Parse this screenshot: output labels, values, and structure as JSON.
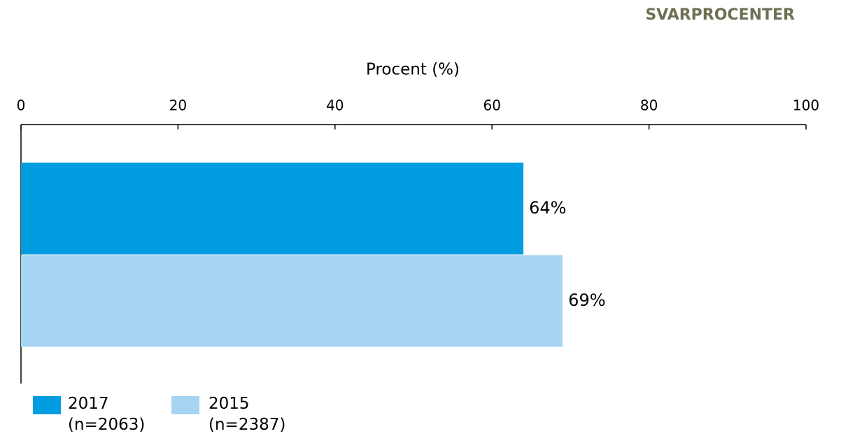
{
  "chart_data": {
    "type": "bar",
    "orientation": "horizontal",
    "title": "SVARPROCENTER",
    "xlabel": "Procent (%)",
    "categories": [
      null
    ],
    "series": [
      {
        "name": "2017 (n=2063)",
        "color": "#009de0",
        "values": [
          64
        ],
        "value_labels": [
          "64%"
        ]
      },
      {
        "name": "2015 (n=2387)",
        "color": "#a8d4f4",
        "values": [
          69
        ],
        "value_labels": [
          "69%"
        ]
      }
    ],
    "xlim": [
      0,
      100
    ],
    "xticks": [
      0,
      20,
      40,
      60,
      80,
      100
    ]
  }
}
